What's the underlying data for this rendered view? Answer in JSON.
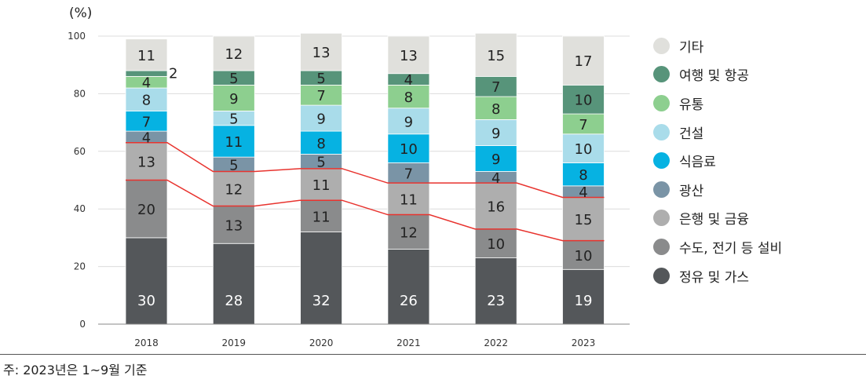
{
  "chart_data": {
    "type": "bar",
    "stacked": true,
    "ylabel": "(%)",
    "ylim": [
      0,
      100
    ],
    "yticks": [
      "0",
      "20",
      "40",
      "60",
      "80",
      "100"
    ],
    "categories": [
      "2018",
      "2019",
      "2020",
      "2021",
      "2022",
      "2023"
    ],
    "grid": true,
    "legend_position": "right",
    "series": [
      {
        "name": "정유 및 가스",
        "color": "#54575a",
        "text_color": "#ffffff",
        "values": [
          30,
          28,
          32,
          26,
          23,
          19
        ]
      },
      {
        "name": "수도, 전기 등 설비",
        "color": "#8a8b8c",
        "text_color": "#222222",
        "values": [
          20,
          13,
          11,
          12,
          10,
          10
        ]
      },
      {
        "name": "은행 및 금융",
        "color": "#aeaeae",
        "text_color": "#222222",
        "values": [
          13,
          12,
          11,
          11,
          16,
          15
        ]
      },
      {
        "name": "광산",
        "color": "#7a94a6",
        "text_color": "#222222",
        "values": [
          4,
          5,
          5,
          7,
          4,
          4
        ]
      },
      {
        "name": "식음료",
        "color": "#06b2e2",
        "text_color": "#222222",
        "values": [
          7,
          11,
          8,
          10,
          9,
          8
        ]
      },
      {
        "name": "건설",
        "color": "#a9dcea",
        "text_color": "#222222",
        "values": [
          8,
          5,
          9,
          9,
          9,
          10
        ]
      },
      {
        "name": "유통",
        "color": "#8dcf8f",
        "text_color": "#222222",
        "values": [
          4,
          9,
          7,
          8,
          8,
          7
        ]
      },
      {
        "name": "여행 및 항공",
        "color": "#57947a",
        "text_color": "#222222",
        "values": [
          2,
          5,
          5,
          4,
          7,
          10
        ]
      },
      {
        "name": "기타",
        "color": "#e0e0dc",
        "text_color": "#222222",
        "values": [
          11,
          12,
          13,
          13,
          15,
          17
        ]
      }
    ],
    "line_color": "#e8332e",
    "connector_lines_after_series": [
      "수도, 전기 등 설비",
      "은행 및 금융"
    ]
  },
  "legend_order": [
    "기타",
    "여행 및 항공",
    "유통",
    "건설",
    "식음료",
    "광산",
    "은행 및 금융",
    "수도, 전기 등 설비",
    "정유 및 가스"
  ],
  "footnote": "주: 2023년은 1~9월 기준"
}
